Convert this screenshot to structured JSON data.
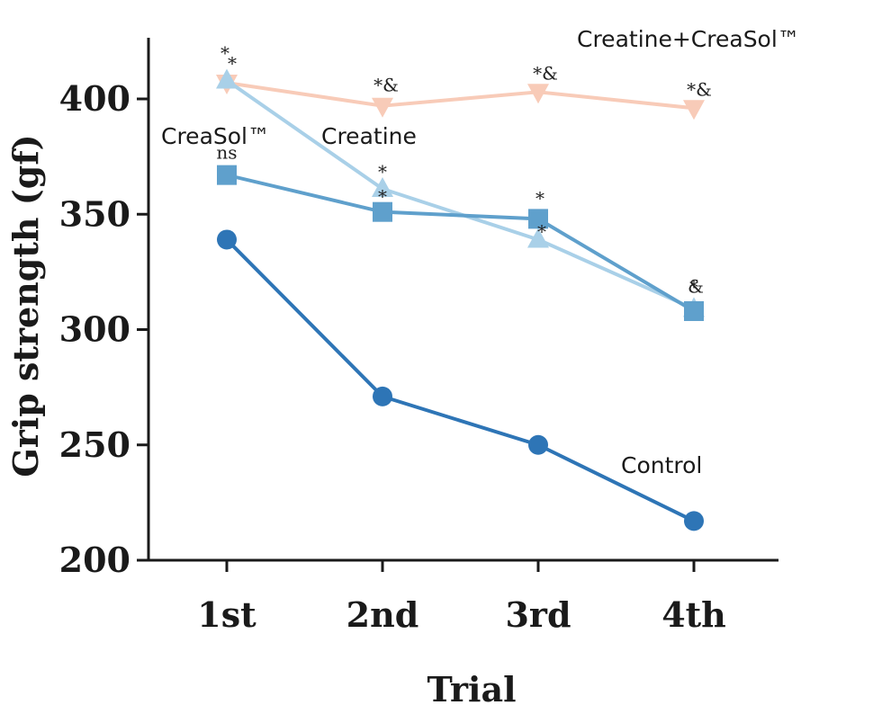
{
  "chart_data": {
    "type": "line",
    "xlabel": "Trial",
    "ylabel": "Grip strength (gf)",
    "categories": [
      "1st",
      "2nd",
      "3rd",
      "4th"
    ],
    "ylim": [
      200,
      420
    ],
    "yticks": [
      200,
      250,
      300,
      350,
      400
    ],
    "grid": false,
    "series": [
      {
        "name": "Control",
        "values": [
          339,
          271,
          250,
          217
        ],
        "color": "#2e75b6",
        "marker": "circle"
      },
      {
        "name": "CreaSol™",
        "values": [
          367,
          351,
          348,
          308
        ],
        "color": "#5fa0cc",
        "marker": "square"
      },
      {
        "name": "Creatine",
        "values": [
          408,
          361,
          339,
          309
        ],
        "color": "#a9d0e8",
        "marker": "triangle-up"
      },
      {
        "name": "Creatine+CreaSol™",
        "values": [
          407,
          397,
          403,
          396
        ],
        "color": "#f8cbb8",
        "marker": "triangle-down"
      }
    ],
    "annotations": [
      {
        "text": "*",
        "category": "1st",
        "series": "Creatine+CreaSol™"
      },
      {
        "text": "*",
        "category": "1st",
        "series": "Creatine"
      },
      {
        "text": "ns",
        "category": "1st",
        "series": "CreaSol™"
      },
      {
        "text": "*&",
        "category": "2nd",
        "series": "Creatine+CreaSol™"
      },
      {
        "text": "*",
        "category": "2nd",
        "series": "Creatine"
      },
      {
        "text": "*",
        "category": "2nd",
        "series": "CreaSol™"
      },
      {
        "text": "*&",
        "category": "3rd",
        "series": "Creatine+CreaSol™"
      },
      {
        "text": "*",
        "category": "3rd",
        "series": "CreaSol™"
      },
      {
        "text": "*",
        "category": "3rd",
        "series": "Creatine"
      },
      {
        "text": "*&",
        "category": "4th",
        "series": "Creatine+CreaSol™"
      },
      {
        "text": "*",
        "category": "4th",
        "series": "CreaSol™"
      },
      {
        "text": "&",
        "category": "4th",
        "series": "Creatine"
      }
    ]
  }
}
